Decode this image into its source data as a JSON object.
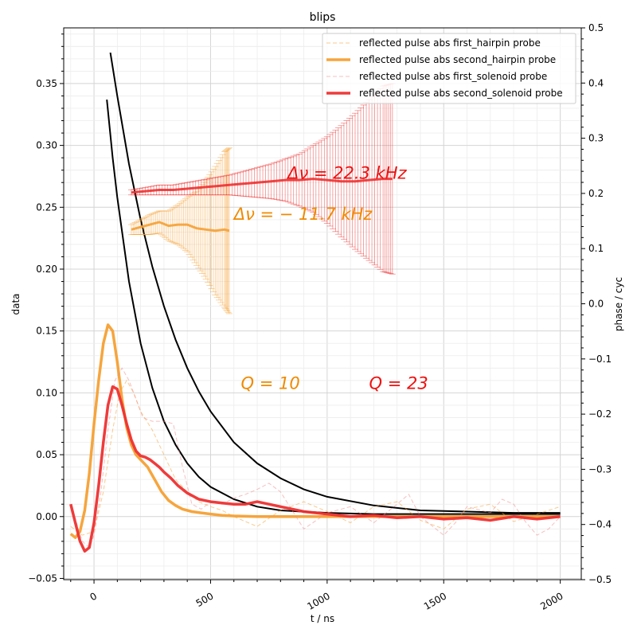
{
  "chart_data": {
    "type": "line",
    "title": "blips",
    "xlabel": "t / ns",
    "ylabel": "data",
    "y2label": "phase / cyc",
    "xlim": [
      -130,
      2090
    ],
    "ylim": [
      -0.051,
      0.395
    ],
    "y2lim": [
      -0.5,
      0.5
    ],
    "x_ticks": [
      0,
      500,
      1000,
      1500,
      2000
    ],
    "x_tick_labels": [
      "0",
      "500",
      "1000",
      "1500",
      "2000"
    ],
    "y_ticks": [
      -0.05,
      0.0,
      0.05,
      0.1,
      0.15,
      0.2,
      0.25,
      0.3,
      0.35
    ],
    "y_tick_labels": [
      "−0.05",
      "0.00",
      "0.05",
      "0.10",
      "0.15",
      "0.20",
      "0.25",
      "0.30",
      "0.35"
    ],
    "y2_ticks": [
      -0.5,
      -0.4,
      -0.3,
      -0.2,
      -0.1,
      0.0,
      0.1,
      0.2,
      0.3,
      0.4,
      0.5
    ],
    "y2_tick_labels": [
      "−0.5",
      "−0.4",
      "−0.3",
      "−0.2",
      "−0.1",
      "0.0",
      "0.1",
      "0.2",
      "0.3",
      "0.4",
      "0.5"
    ],
    "grid": true,
    "legend_position": "top-right",
    "series": [
      {
        "name": "reflected pulse abs first_hairpin probe",
        "color": "#f5a033",
        "style": "dashed-thin",
        "x": [
          -100,
          -50,
          0,
          40,
          80,
          110,
          140,
          170,
          200,
          250,
          300,
          350,
          400,
          450,
          500,
          550,
          600,
          700,
          800,
          900,
          1000,
          1100,
          1200,
          1300,
          1400,
          1500,
          1600,
          1700,
          1800,
          1900,
          2000
        ],
        "y": [
          -0.008,
          -0.015,
          -0.012,
          0.02,
          0.07,
          0.1,
          0.11,
          0.1,
          0.085,
          0.07,
          0.05,
          0.03,
          0.02,
          0.012,
          0.008,
          0.005,
          0.0,
          -0.008,
          0.005,
          0.012,
          0.004,
          -0.005,
          0.008,
          0.012,
          -0.003,
          -0.01,
          0.006,
          0.01,
          -0.004,
          0.002,
          0.008
        ]
      },
      {
        "name": "reflected pulse abs second_hairpin probe",
        "color": "#f5a033",
        "style": "solid-thick",
        "x": [
          -100,
          -80,
          -60,
          -40,
          -20,
          0,
          20,
          40,
          60,
          80,
          100,
          120,
          140,
          160,
          180,
          200,
          230,
          260,
          290,
          320,
          350,
          380,
          420,
          460,
          500,
          550,
          600,
          700,
          800,
          900,
          1000,
          1200,
          1400,
          1600,
          1800,
          2000
        ],
        "y": [
          -0.014,
          -0.017,
          -0.012,
          0.005,
          0.035,
          0.075,
          0.11,
          0.14,
          0.155,
          0.15,
          0.125,
          0.095,
          0.072,
          0.058,
          0.05,
          0.046,
          0.04,
          0.03,
          0.02,
          0.013,
          0.009,
          0.006,
          0.004,
          0.003,
          0.002,
          0.001,
          0.0005,
          0.0,
          0.0,
          0.0,
          0.0,
          0.0,
          0.0,
          0.0,
          0.0,
          0.0
        ]
      },
      {
        "name": "reflected pulse abs first_solenoid probe",
        "color": "#f08a8a",
        "style": "dashed-thin",
        "x": [
          -100,
          -50,
          -20,
          0,
          30,
          60,
          90,
          120,
          150,
          180,
          210,
          250,
          300,
          340,
          380,
          420,
          460,
          500,
          550,
          600,
          650,
          700,
          750,
          800,
          850,
          900,
          1000,
          1100,
          1200,
          1300,
          1350,
          1400,
          1500,
          1550,
          1600,
          1700,
          1750,
          1800,
          1850,
          1900,
          1950,
          2000
        ],
        "y": [
          0.01,
          -0.02,
          -0.025,
          -0.015,
          0.02,
          0.07,
          0.11,
          0.12,
          0.11,
          0.095,
          0.08,
          0.077,
          0.077,
          0.075,
          0.04,
          0.01,
          0.006,
          0.012,
          0.01,
          0.015,
          0.018,
          0.022,
          0.027,
          0.02,
          0.005,
          -0.01,
          0.003,
          0.008,
          -0.005,
          0.01,
          0.018,
          0.0,
          -0.015,
          -0.005,
          0.008,
          0.003,
          0.014,
          0.01,
          -0.004,
          -0.015,
          -0.01,
          0.0
        ]
      },
      {
        "name": "reflected pulse abs second_solenoid probe",
        "color": "#ee3030",
        "style": "solid-thick",
        "x": [
          -100,
          -80,
          -60,
          -40,
          -20,
          0,
          20,
          40,
          60,
          80,
          100,
          120,
          140,
          160,
          180,
          200,
          220,
          240,
          260,
          280,
          300,
          330,
          360,
          400,
          450,
          500,
          550,
          600,
          650,
          700,
          750,
          800,
          900,
          1000,
          1100,
          1200,
          1300,
          1400,
          1500,
          1600,
          1700,
          1800,
          1900,
          2000
        ],
        "y": [
          0.01,
          -0.005,
          -0.02,
          -0.028,
          -0.025,
          -0.005,
          0.025,
          0.06,
          0.09,
          0.105,
          0.103,
          0.09,
          0.075,
          0.062,
          0.053,
          0.049,
          0.048,
          0.046,
          0.043,
          0.04,
          0.036,
          0.031,
          0.025,
          0.019,
          0.014,
          0.012,
          0.011,
          0.01,
          0.01,
          0.012,
          0.01,
          0.008,
          0.004,
          0.002,
          0.0,
          0.001,
          -0.001,
          0.0,
          -0.002,
          -0.001,
          -0.003,
          0.0,
          -0.002,
          0.0
        ]
      },
      {
        "name": "",
        "color": "#000000",
        "style": "solid-fit",
        "x": [
          55,
          80,
          100,
          150,
          200,
          250,
          300,
          350,
          400,
          450,
          500,
          600,
          700,
          800,
          1000,
          1200,
          1500,
          1800,
          2000
        ],
        "y": [
          0.337,
          0.29,
          0.258,
          0.19,
          0.14,
          0.104,
          0.077,
          0.058,
          0.043,
          0.032,
          0.024,
          0.014,
          0.008,
          0.005,
          0.003,
          0.002,
          0.002,
          0.002,
          0.002
        ]
      },
      {
        "name": "",
        "color": "#000000",
        "style": "solid-fit",
        "x": [
          70,
          100,
          150,
          200,
          250,
          300,
          350,
          400,
          450,
          500,
          600,
          700,
          800,
          900,
          1000,
          1200,
          1400,
          1600,
          1800,
          2000
        ],
        "y": [
          0.375,
          0.34,
          0.285,
          0.24,
          0.202,
          0.17,
          0.143,
          0.12,
          0.101,
          0.085,
          0.06,
          0.043,
          0.031,
          0.022,
          0.016,
          0.009,
          0.005,
          0.004,
          0.003,
          0.003
        ]
      },
      {
        "name": "",
        "color": "#f5a033",
        "style": "phase-band",
        "x": [
          160,
          200,
          240,
          280,
          320,
          360,
          400,
          440,
          480,
          520,
          560,
          580
        ],
        "y": [
          0.232,
          0.234,
          0.236,
          0.238,
          0.235,
          0.236,
          0.236,
          0.233,
          0.232,
          0.231,
          0.232,
          0.231
        ],
        "err": [
          0.004,
          0.006,
          0.008,
          0.009,
          0.012,
          0.016,
          0.022,
          0.03,
          0.04,
          0.052,
          0.063,
          0.067
        ]
      },
      {
        "name": "",
        "color": "#ee3030",
        "style": "phase-band",
        "x": [
          160,
          220,
          280,
          340,
          400,
          460,
          520,
          580,
          640,
          700,
          760,
          820,
          880,
          940,
          1000,
          1060,
          1120,
          1180,
          1240,
          1280
        ],
        "y": [
          0.262,
          0.263,
          0.264,
          0.264,
          0.265,
          0.266,
          0.267,
          0.268,
          0.269,
          0.27,
          0.271,
          0.272,
          0.272,
          0.273,
          0.272,
          0.271,
          0.271,
          0.272,
          0.273,
          0.273
        ],
        "err": [
          0.002,
          0.003,
          0.004,
          0.004,
          0.005,
          0.006,
          0.007,
          0.008,
          0.01,
          0.012,
          0.014,
          0.017,
          0.021,
          0.027,
          0.035,
          0.045,
          0.055,
          0.065,
          0.075,
          0.077
        ]
      }
    ],
    "annotations": [
      {
        "text": "Δν = 22.3 kHz",
        "x": 830,
        "y": 0.273,
        "color": "#ee1111"
      },
      {
        "text": "Δν = − 11.7 kHz",
        "x": 600,
        "y": 0.24,
        "color": "#f08a00"
      },
      {
        "text": "Q = 10",
        "x": 630,
        "y": 0.103,
        "color": "#f08a00"
      },
      {
        "text": "Q = 23",
        "x": 1180,
        "y": 0.103,
        "color": "#ee1111"
      }
    ]
  }
}
